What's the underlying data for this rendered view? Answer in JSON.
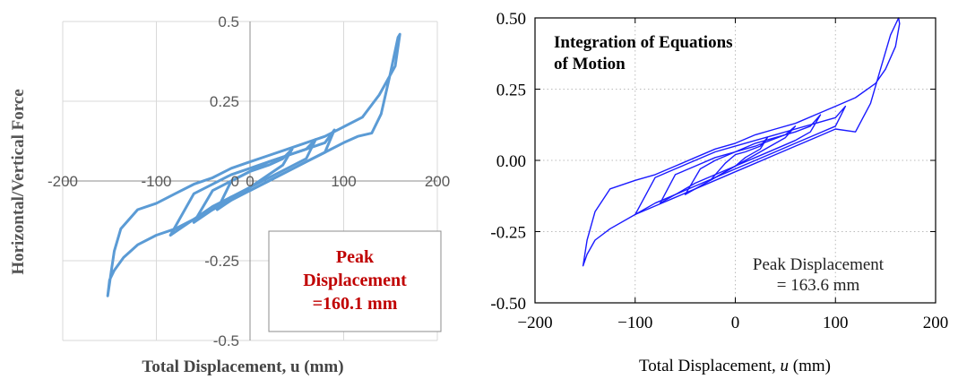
{
  "chart_data": [
    {
      "type": "line",
      "ylabel": "Horizontal/Vertical Force",
      "xlabel": "Total Displacement, u (mm)",
      "xlim": [
        -200,
        200
      ],
      "ylim": [
        -0.5,
        0.5
      ],
      "x_ticks": [
        -200,
        -100,
        0,
        100,
        200
      ],
      "x_tick_labels": [
        "-200",
        "-100",
        "0",
        "100",
        "200"
      ],
      "y_ticks": [
        0.5,
        0.25,
        0,
        -0.25,
        -0.5
      ],
      "y_tick_labels": [
        "0.5",
        "0.25",
        "0",
        "-0.25",
        "-0.5"
      ],
      "grid": true,
      "annotation": [
        "Peak",
        "Displacement",
        "=160.1 mm"
      ],
      "colors": {
        "line": "#5b9bd5",
        "annotation": "#c00000",
        "grid": "#d9d9d9"
      },
      "series": [
        {
          "x": [
            -152,
            -150,
            -145,
            -135,
            -120,
            -100,
            -80,
            -60,
            -40,
            -20,
            0,
            20,
            40,
            60,
            80,
            100,
            115,
            130,
            140,
            150,
            158,
            160,
            155,
            138,
            120,
            100,
            80,
            60,
            40,
            20,
            0,
            -20,
            -40,
            -60,
            -80,
            -100,
            -120,
            -138,
            -145,
            -148,
            -150,
            -152
          ],
          "y": [
            -0.36,
            -0.31,
            -0.28,
            -0.24,
            -0.2,
            -0.17,
            -0.15,
            -0.12,
            -0.09,
            -0.06,
            -0.03,
            0.0,
            0.03,
            0.06,
            0.09,
            0.12,
            0.14,
            0.15,
            0.21,
            0.34,
            0.45,
            0.46,
            0.36,
            0.27,
            0.2,
            0.17,
            0.14,
            0.12,
            0.1,
            0.08,
            0.06,
            0.04,
            0.01,
            -0.01,
            -0.04,
            -0.07,
            -0.09,
            -0.15,
            -0.22,
            -0.28,
            -0.32,
            -0.36
          ]
        },
        {
          "x": [
            -85,
            -60,
            -40,
            -20,
            0,
            20,
            40,
            60,
            80,
            90,
            80,
            60,
            40,
            20,
            0,
            -20,
            -40,
            -60,
            -85
          ],
          "y": [
            -0.17,
            -0.12,
            -0.08,
            -0.05,
            -0.03,
            0.0,
            0.03,
            0.06,
            0.09,
            0.16,
            0.12,
            0.1,
            0.08,
            0.06,
            0.04,
            0.02,
            -0.01,
            -0.04,
            -0.17
          ]
        },
        {
          "x": [
            -60,
            -40,
            -20,
            0,
            20,
            40,
            60,
            70,
            60,
            40,
            20,
            0,
            -20,
            -40,
            -60
          ],
          "y": [
            -0.13,
            -0.09,
            -0.05,
            -0.02,
            0.01,
            0.04,
            0.07,
            0.13,
            0.1,
            0.08,
            0.06,
            0.03,
            0.0,
            -0.03,
            -0.13
          ]
        },
        {
          "x": [
            -35,
            -20,
            0,
            20,
            35,
            45,
            35,
            20,
            0,
            -20,
            -35
          ],
          "y": [
            -0.09,
            -0.06,
            -0.02,
            0.02,
            0.05,
            0.1,
            0.07,
            0.05,
            0.03,
            0.0,
            -0.09
          ]
        }
      ]
    },
    {
      "type": "line",
      "title": [
        "Integration of Equations",
        "of Motion"
      ],
      "xlabel_parts": [
        "Total Displacement, ",
        "u",
        " (mm)"
      ],
      "xlim": [
        -200,
        200
      ],
      "ylim": [
        -0.5,
        0.5
      ],
      "x_ticks": [
        -200,
        -100,
        0,
        100,
        200
      ],
      "x_tick_labels": [
        "−200",
        "−100",
        "0",
        "100",
        "200"
      ],
      "y_ticks": [
        0.5,
        0.25,
        0,
        -0.25,
        -0.5
      ],
      "y_tick_labels": [
        "0.50",
        "0.25",
        "0.00",
        "-0.25",
        "-0.50"
      ],
      "grid": true,
      "annotation": [
        "Peak Displacement",
        "= 163.6 mm"
      ],
      "colors": {
        "line": "#1a1aff",
        "grid": "#bbbbbb"
      },
      "series": [
        {
          "x": [
            -152,
            -148,
            -140,
            -125,
            -100,
            -80,
            -60,
            -40,
            -20,
            0,
            20,
            40,
            60,
            80,
            100,
            120,
            135,
            145,
            155,
            163,
            164,
            160,
            150,
            140,
            120,
            100,
            80,
            60,
            40,
            20,
            0,
            -20,
            -40,
            -60,
            -80,
            -100,
            -125,
            -140,
            -148,
            -152
          ],
          "y": [
            -0.37,
            -0.33,
            -0.28,
            -0.24,
            -0.19,
            -0.16,
            -0.13,
            -0.1,
            -0.07,
            -0.04,
            -0.01,
            0.02,
            0.05,
            0.08,
            0.11,
            0.1,
            0.2,
            0.32,
            0.44,
            0.5,
            0.48,
            0.4,
            0.32,
            0.27,
            0.22,
            0.19,
            0.16,
            0.13,
            0.11,
            0.09,
            0.06,
            0.04,
            0.01,
            -0.02,
            -0.05,
            -0.07,
            -0.1,
            -0.18,
            -0.28,
            -0.37
          ]
        },
        {
          "x": [
            -100,
            -80,
            -60,
            -40,
            -20,
            0,
            20,
            40,
            60,
            80,
            100,
            110,
            100,
            80,
            60,
            40,
            20,
            0,
            -20,
            -40,
            -60,
            -80,
            -100
          ],
          "y": [
            -0.19,
            -0.15,
            -0.12,
            -0.09,
            -0.06,
            -0.03,
            0.0,
            0.03,
            0.06,
            0.09,
            0.12,
            0.19,
            0.15,
            0.13,
            0.11,
            0.09,
            0.07,
            0.05,
            0.03,
            0.0,
            -0.03,
            -0.06,
            -0.19
          ]
        },
        {
          "x": [
            -75,
            -60,
            -40,
            -20,
            0,
            20,
            40,
            60,
            75,
            85,
            75,
            60,
            40,
            20,
            0,
            -20,
            -40,
            -60,
            -75
          ],
          "y": [
            -0.15,
            -0.12,
            -0.08,
            -0.05,
            -0.02,
            0.01,
            0.04,
            0.07,
            0.1,
            0.16,
            0.12,
            0.1,
            0.08,
            0.06,
            0.03,
            0.01,
            -0.02,
            -0.05,
            -0.15
          ]
        },
        {
          "x": [
            -50,
            -35,
            -20,
            0,
            20,
            35,
            50,
            60,
            50,
            35,
            20,
            0,
            -20,
            -35,
            -50
          ],
          "y": [
            -0.12,
            -0.09,
            -0.06,
            -0.02,
            0.02,
            0.05,
            0.08,
            0.12,
            0.09,
            0.07,
            0.05,
            0.03,
            0.0,
            -0.03,
            -0.12
          ]
        },
        {
          "x": [
            -25,
            -10,
            0,
            10,
            25,
            32,
            25,
            10,
            0,
            -10,
            -25
          ],
          "y": [
            -0.07,
            -0.04,
            -0.02,
            0.01,
            0.04,
            0.08,
            0.05,
            0.03,
            0.02,
            -0.01,
            -0.07
          ]
        }
      ]
    }
  ]
}
